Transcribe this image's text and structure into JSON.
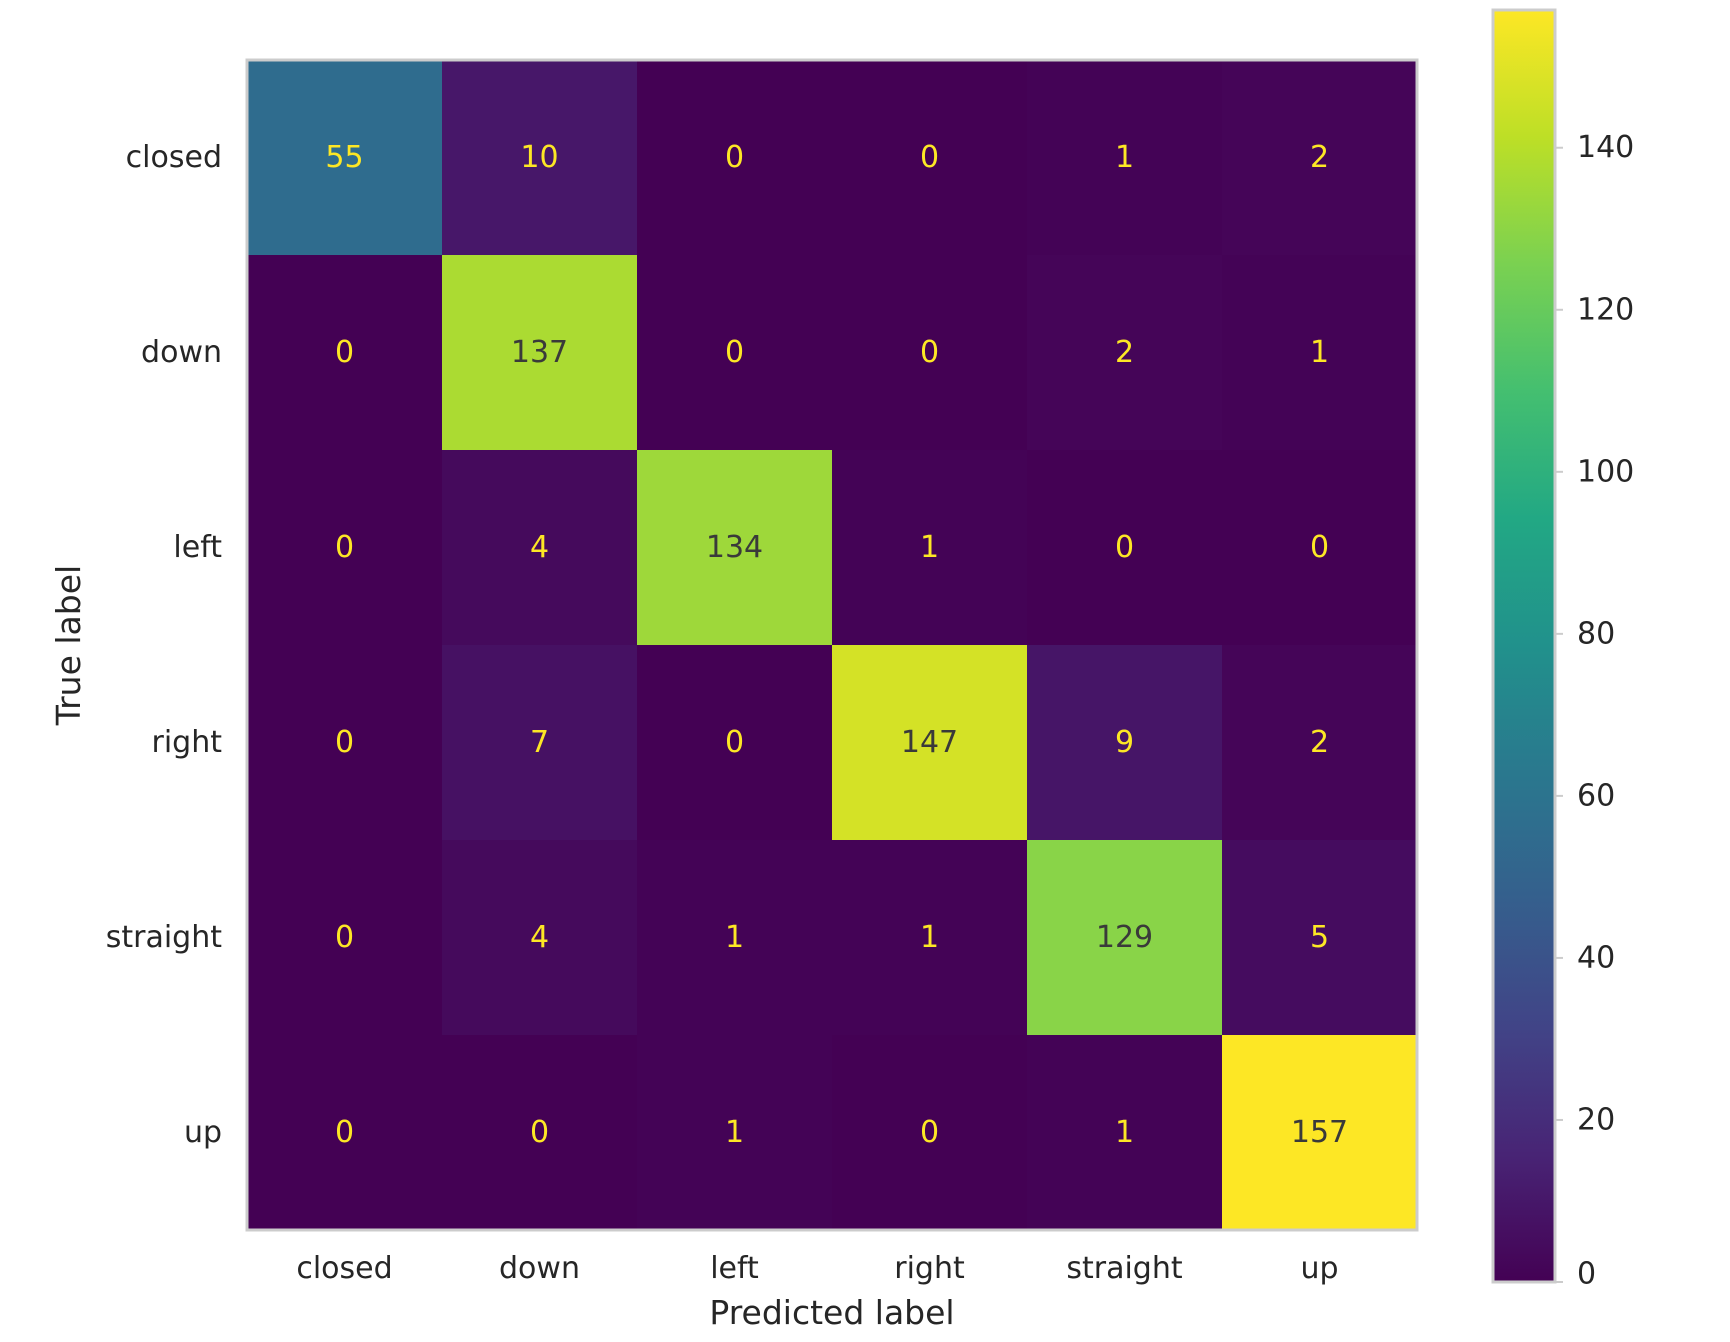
{
  "chart_data": {
    "type": "heatmap",
    "title": "",
    "xlabel": "Predicted label",
    "ylabel": "True label",
    "x_categories": [
      "closed",
      "down",
      "left",
      "right",
      "straight",
      "up"
    ],
    "y_categories": [
      "closed",
      "down",
      "left",
      "right",
      "straight",
      "up"
    ],
    "values": [
      [
        55,
        10,
        0,
        0,
        1,
        2
      ],
      [
        0,
        137,
        0,
        0,
        2,
        1
      ],
      [
        0,
        4,
        134,
        1,
        0,
        0
      ],
      [
        0,
        7,
        0,
        147,
        9,
        2
      ],
      [
        0,
        4,
        1,
        1,
        129,
        5
      ],
      [
        0,
        0,
        1,
        0,
        1,
        157
      ]
    ],
    "colormap": "viridis",
    "color_range": [
      0,
      157
    ],
    "colorbar_ticks": [
      0,
      20,
      40,
      60,
      80,
      100,
      120,
      140
    ],
    "grid": false,
    "colorbar_position": "right"
  }
}
